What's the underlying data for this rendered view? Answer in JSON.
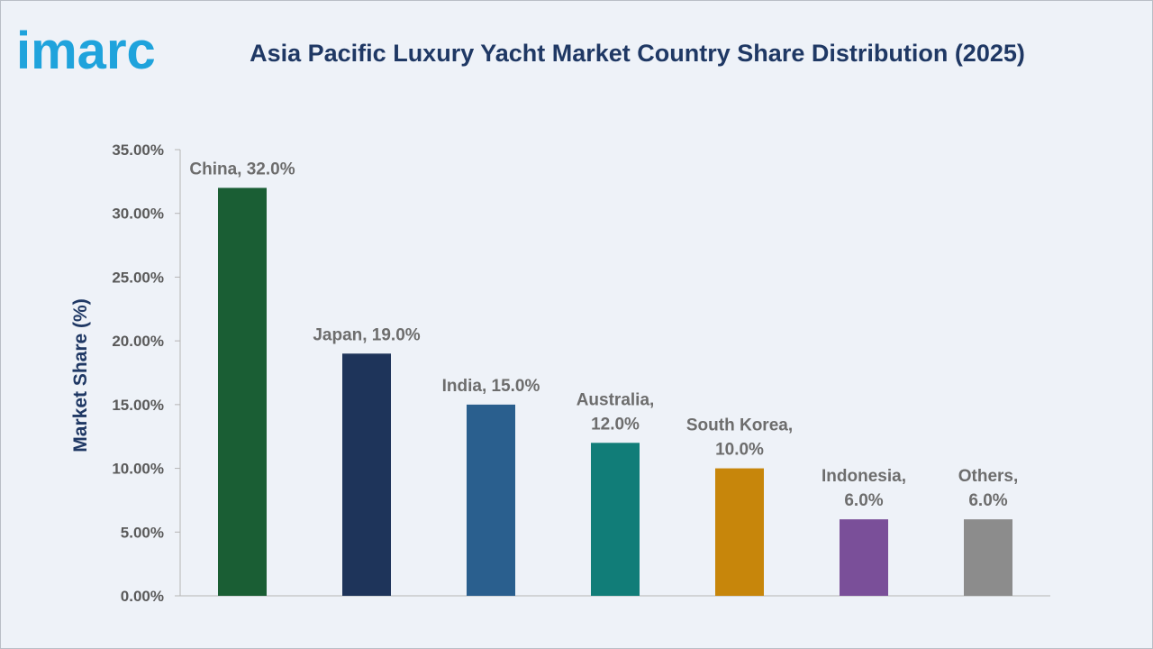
{
  "brand": {
    "logo_text": "imarc",
    "color": "#1fa3dc"
  },
  "chart_data": {
    "type": "bar",
    "title": "Asia Pacific Luxury Yacht Market Country Share Distribution (2025)",
    "xlabel": "",
    "ylabel": "Market Share (%)",
    "ylim": [
      0,
      35
    ],
    "yticks": [
      0,
      5,
      10,
      15,
      20,
      25,
      30,
      35
    ],
    "ytick_labels": [
      "0.00%",
      "5.00%",
      "10.00%",
      "15.00%",
      "20.00%",
      "25.00%",
      "30.00%",
      "35.00%"
    ],
    "grid": false,
    "legend": "none",
    "categories": [
      "China",
      "Japan",
      "India",
      "Australia",
      "South Korea",
      "Indonesia",
      "Others"
    ],
    "values": [
      32.0,
      19.0,
      15.0,
      12.0,
      10.0,
      6.0,
      6.0
    ],
    "data_labels": [
      [
        "China, 32.0%"
      ],
      [
        "Japan, 19.0%"
      ],
      [
        "India, 15.0%"
      ],
      [
        "Australia,",
        "12.0%"
      ],
      [
        "South Korea,",
        "10.0%"
      ],
      [
        "Indonesia,",
        "6.0%"
      ],
      [
        "Others,",
        "6.0%"
      ]
    ],
    "colors": [
      "#1a5e34",
      "#1e345a",
      "#2a5f8e",
      "#117d78",
      "#c7860b",
      "#7a4f99",
      "#8c8c8c"
    ]
  }
}
